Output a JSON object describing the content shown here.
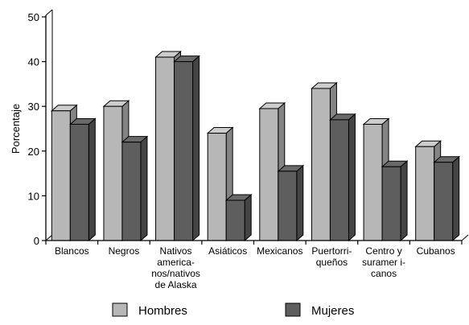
{
  "chart_data": {
    "type": "bar",
    "title": "",
    "ylabel": "Porcentaje",
    "xlabel": "",
    "ylim": [
      0,
      50
    ],
    "yticks": [
      0,
      10,
      20,
      30,
      40,
      50
    ],
    "grid": false,
    "legend_placement": "bottom",
    "categories": [
      [
        "Blancos"
      ],
      [
        "Negros"
      ],
      [
        "Nativos",
        "america-",
        "nos/nativos",
        "de Alaska"
      ],
      [
        "Asiáticos"
      ],
      [
        "Mexicanos"
      ],
      [
        "Puertorri-",
        "queños"
      ],
      [
        "Centro y",
        "suramer i-",
        "canos"
      ],
      [
        "Cubanos"
      ]
    ],
    "series": [
      {
        "name": "Hombres",
        "color": "#b7b7b7",
        "values": [
          29,
          30,
          41,
          24,
          29.5,
          34,
          26,
          21
        ]
      },
      {
        "name": "Mujeres",
        "color": "#5e5e5e",
        "values": [
          26,
          22,
          40,
          9,
          15.5,
          27,
          16.5,
          17.5
        ]
      }
    ]
  }
}
